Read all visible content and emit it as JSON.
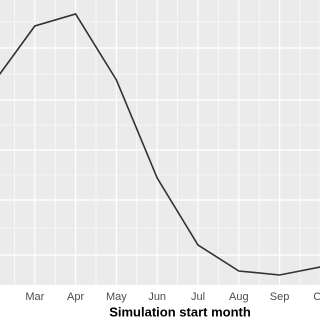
{
  "chart_data": {
    "type": "line",
    "x_label": "Simulation start month",
    "categories": [
      null,
      "Mar",
      "Apr",
      "May",
      "Jun",
      "Jul",
      "Aug",
      "Sep",
      "Oc"
    ],
    "values": [
      203,
      259,
      271,
      205,
      107,
      40,
      14,
      10,
      18
    ],
    "color": "#2b3538",
    "ylim": [
      0,
      285
    ],
    "grid": true
  }
}
